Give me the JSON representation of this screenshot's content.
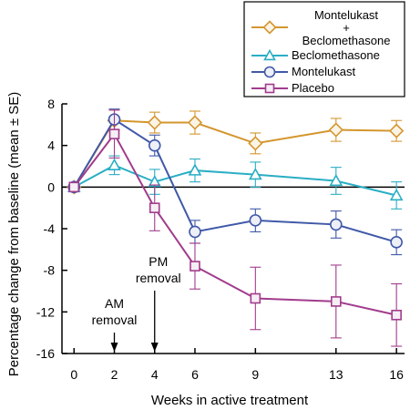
{
  "chart_data": {
    "type": "line",
    "xlabel": "Weeks in active treatment",
    "ylabel": "Percentage change from baseline (mean ± SE)",
    "x_ticks": [
      0,
      2,
      4,
      6,
      9,
      13,
      16
    ],
    "x_positions": [
      0,
      2,
      4,
      6,
      9,
      13,
      16
    ],
    "y_ticks": [
      8,
      4,
      0,
      -4,
      -8,
      -12,
      -16
    ],
    "ylim": [
      -16,
      8
    ],
    "reference_line": 0,
    "legend_position": "top-right",
    "series": [
      {
        "name_lines": [
          "Montelukast",
          "+",
          "Beclomethasone"
        ],
        "marker": "diamond",
        "color": "#d4962e",
        "x": [
          0,
          2,
          4,
          6,
          9,
          13,
          16
        ],
        "y": [
          0,
          6.4,
          6.2,
          6.2,
          4.2,
          5.5,
          5.4
        ],
        "err": [
          0,
          1.0,
          1.0,
          1.1,
          1.0,
          1.1,
          1.0
        ]
      },
      {
        "name_lines": [
          "Beclomethasone"
        ],
        "marker": "triangle",
        "color": "#2aaec4",
        "x": [
          0,
          2,
          4,
          6,
          9,
          13,
          16
        ],
        "y": [
          0,
          2.1,
          0.5,
          1.6,
          1.2,
          0.6,
          -0.8
        ],
        "err": [
          0,
          0.9,
          1.2,
          1.1,
          1.2,
          1.3,
          1.3
        ]
      },
      {
        "name_lines": [
          "Montelukast"
        ],
        "marker": "circle",
        "color": "#4058a8",
        "x": [
          0,
          2,
          4,
          6,
          9,
          13,
          16
        ],
        "y": [
          0,
          6.5,
          4.0,
          -4.3,
          -3.2,
          -3.6,
          -5.3
        ],
        "err": [
          0,
          1.0,
          1.0,
          1.1,
          1.1,
          1.3,
          1.2
        ]
      },
      {
        "name_lines": [
          "Placebo"
        ],
        "marker": "square",
        "color": "#a13c8c",
        "x": [
          0,
          2,
          4,
          6,
          9,
          13,
          16
        ],
        "y": [
          0,
          5.1,
          -2.0,
          -7.6,
          -10.7,
          -11.0,
          -12.3
        ],
        "err": [
          0,
          2.3,
          2.2,
          2.2,
          3.0,
          3.5,
          3.0
        ]
      }
    ],
    "annotations": [
      {
        "lines": [
          "AM",
          "removal"
        ],
        "x": 2
      },
      {
        "lines": [
          "PM",
          "removal"
        ],
        "x": 4
      }
    ]
  }
}
